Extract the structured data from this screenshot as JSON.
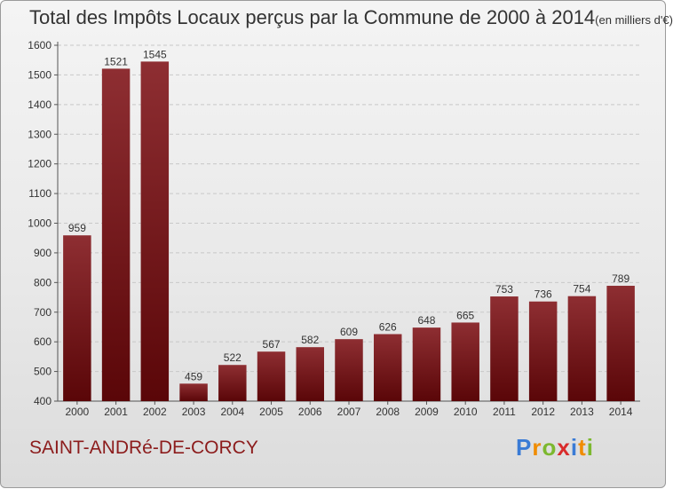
{
  "title": {
    "main": "Total des Impôts Locaux perçus par la Commune de 2000 à 2014",
    "unit": "(en milliers d'€)"
  },
  "commune": "SAINT-ANDRé-DE-CORCY",
  "logo": {
    "text": "Proxiti",
    "letters": [
      {
        "ch": "P",
        "color": "#3a7bd5"
      },
      {
        "ch": "r",
        "color": "#f08c00"
      },
      {
        "ch": "o",
        "color": "#7cb82f"
      },
      {
        "ch": "x",
        "color": "#d92b2b"
      },
      {
        "ch": "i",
        "color": "#3a7bd5"
      },
      {
        "ch": "t",
        "color": "#f08c00"
      },
      {
        "ch": "i",
        "color": "#7cb82f"
      }
    ]
  },
  "colors": {
    "bar_top": "#8e2e32",
    "bar_bottom": "#5a0608",
    "commune": "#8c1c1c"
  },
  "chart_data": {
    "type": "bar",
    "title": "Total des Impôts Locaux perçus par la Commune de 2000 à 2014 (en milliers d'€)",
    "xlabel": "",
    "ylabel": "",
    "categories": [
      "2000",
      "2001",
      "2002",
      "2003",
      "2004",
      "2005",
      "2006",
      "2007",
      "2008",
      "2009",
      "2010",
      "2011",
      "2012",
      "2013",
      "2014"
    ],
    "values": [
      959,
      1521,
      1545,
      459,
      522,
      567,
      582,
      609,
      626,
      648,
      665,
      753,
      736,
      754,
      789
    ],
    "ylim": [
      400,
      1600
    ],
    "yticks": [
      400,
      500,
      600,
      700,
      800,
      900,
      1000,
      1100,
      1200,
      1300,
      1400,
      1500,
      1600
    ],
    "grid": true,
    "data_labels": true
  }
}
